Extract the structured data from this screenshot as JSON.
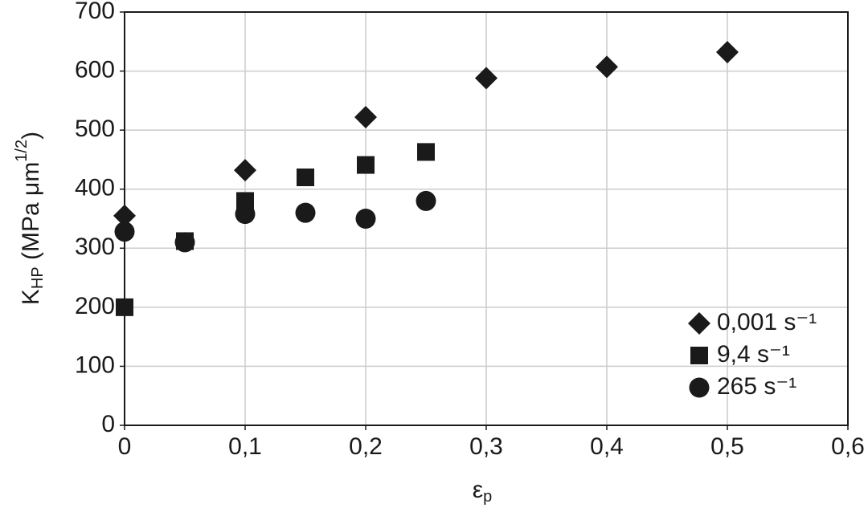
{
  "chart_data": {
    "type": "scatter",
    "xlabel": [
      "ε",
      "p"
    ],
    "ylabel": [
      "K",
      "HP",
      " (MPa μm",
      "1/2",
      ")"
    ],
    "xlim": [
      0,
      0.6
    ],
    "xticks": [
      0,
      {
        "value": 0.1,
        "label": "0,1"
      },
      {
        "value": 0.2,
        "label": "0,2"
      },
      {
        "value": 0.3,
        "label": "0,3"
      },
      {
        "value": 0.4,
        "label": "0,4"
      },
      {
        "value": 0.5,
        "label": "0,5"
      },
      {
        "value": 0.6,
        "label": "0,6"
      }
    ],
    "ylim": [
      0,
      700
    ],
    "yticks": [
      0,
      100,
      200,
      300,
      400,
      500,
      600,
      700
    ],
    "grid": true,
    "legend": "lower right",
    "series": [
      {
        "name": "0,001 s⁻¹",
        "marker": "diamond",
        "color": "#1a1a1a",
        "x": [
          0,
          0.1,
          0.2,
          0.3,
          0.4,
          0.5
        ],
        "values": [
          355,
          432,
          522,
          588,
          607,
          632
        ]
      },
      {
        "name": "9,4 s⁻¹",
        "marker": "square",
        "color": "#1a1a1a",
        "x": [
          0,
          0.05,
          0.1,
          0.15,
          0.2,
          0.25
        ],
        "values": [
          200,
          312,
          380,
          420,
          441,
          463
        ]
      },
      {
        "name": "265 s⁻¹",
        "marker": "circle",
        "color": "#1a1a1a",
        "x": [
          0,
          0.05,
          0.1,
          0.15,
          0.2,
          0.25
        ],
        "values": [
          328,
          310,
          358,
          360,
          350,
          380
        ]
      }
    ]
  }
}
